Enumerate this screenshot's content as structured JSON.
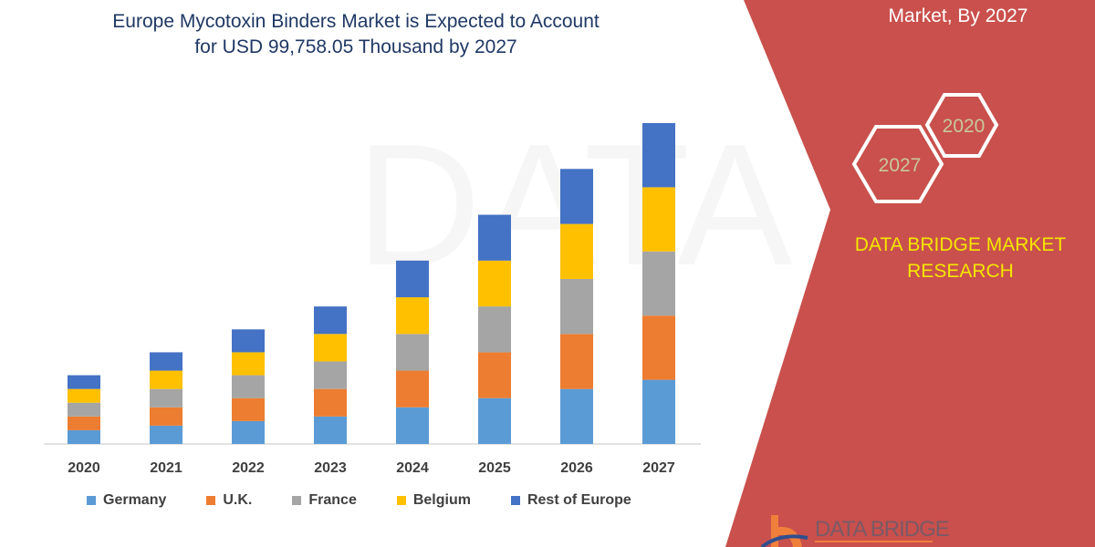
{
  "header": {
    "title_line1": "Europe Mycotoxin Binders Market is Expected to Account",
    "title_line2": "for USD 99,758.05 Thousand by 2027"
  },
  "side_panel": {
    "top_text": "Market, By 2027",
    "hex_2020": "2020",
    "hex_2027": "2027",
    "brand_line1": "DATA BRIDGE MARKET",
    "brand_line2": "RESEARCH",
    "logo_text": "DATA BRIDGE",
    "panel_color": "#c9504c",
    "brand_color": "#f5e600"
  },
  "chart_data": {
    "type": "bar",
    "stacked": true,
    "title": "Europe Mycotoxin Binders Market is Expected to Account for USD 99,758.05 Thousand by 2027",
    "categories": [
      "2020",
      "2021",
      "2022",
      "2023",
      "2024",
      "2025",
      "2026",
      "2027"
    ],
    "series": [
      {
        "name": "Germany",
        "color": "#5b9bd5",
        "values": [
          3,
          4,
          5,
          6,
          8,
          10,
          12,
          14
        ]
      },
      {
        "name": "U.K.",
        "color": "#ed7d31",
        "values": [
          3,
          4,
          5,
          6,
          8,
          10,
          12,
          14
        ]
      },
      {
        "name": "France",
        "color": "#a5a5a5",
        "values": [
          3,
          4,
          5,
          6,
          8,
          10,
          12,
          14
        ]
      },
      {
        "name": "Belgium",
        "color": "#ffc000",
        "values": [
          3,
          4,
          5,
          6,
          8,
          10,
          12,
          14
        ]
      },
      {
        "name": "Rest of Europe",
        "color": "#4472c4",
        "values": [
          3,
          4,
          5,
          6,
          8,
          10,
          12,
          14
        ]
      }
    ],
    "xlabel": "",
    "ylabel": "",
    "ylim": [
      0,
      70
    ],
    "grid": false,
    "y_axis_visible": false,
    "legend_position": "bottom"
  }
}
